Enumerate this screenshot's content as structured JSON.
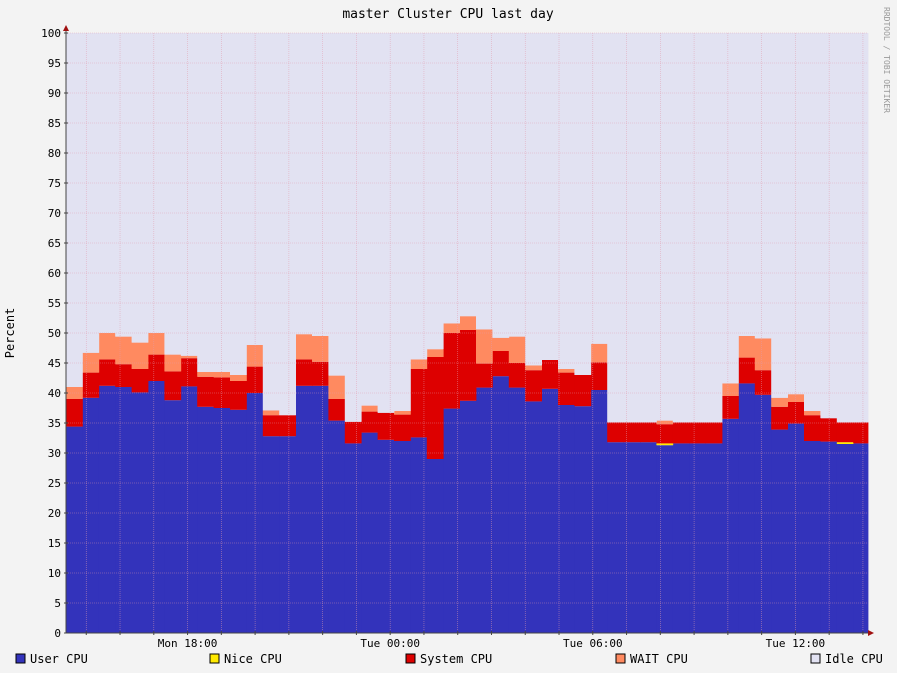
{
  "chart_data": {
    "type": "area",
    "stacked": true,
    "title": "master Cluster CPU last day",
    "ylabel": "Percent",
    "xlabel": "",
    "watermark": "RRDTOOL / TOBI OETIKER",
    "ylim": [
      0,
      100
    ],
    "yticks": [
      0,
      5,
      10,
      15,
      20,
      25,
      30,
      35,
      40,
      45,
      50,
      55,
      60,
      65,
      70,
      75,
      80,
      85,
      90,
      95,
      100
    ],
    "xlim_hours": [
      14.4,
      38.15
    ],
    "xtick_labels": [
      {
        "label": "Mon 18:00",
        "hour": 18
      },
      {
        "label": "Tue 00:00",
        "hour": 24
      },
      {
        "label": "Tue 06:00",
        "hour": 30
      },
      {
        "label": "Tue 12:00",
        "hour": 36
      }
    ],
    "grid": true,
    "legend_position": "bottom",
    "series_colors": {
      "user": "#3333bb",
      "nice": "#ffea00",
      "system": "#dd0000",
      "wait": "#ff8a60",
      "idle": "#e2e2f2"
    },
    "legend": [
      {
        "key": "user",
        "label": "User CPU"
      },
      {
        "key": "nice",
        "label": "Nice CPU"
      },
      {
        "key": "system",
        "label": "System CPU"
      },
      {
        "key": "wait",
        "label": "WAIT CPU"
      },
      {
        "key": "idle",
        "label": "Idle CPU"
      }
    ],
    "series": [
      {
        "name": "User CPU",
        "key": "user",
        "values": [
          34.4,
          39.2,
          41.2,
          41.0,
          40.1,
          42.0,
          38.8,
          41.1,
          37.7,
          37.5,
          37.2,
          40.0,
          32.8,
          32.8,
          41.2,
          41.2,
          35.4,
          31.6,
          33.4,
          32.2,
          32.0,
          32.6,
          29.0,
          37.4,
          38.7,
          40.9,
          42.8,
          40.9,
          38.6,
          40.7,
          38.0,
          37.8,
          40.5,
          31.8,
          31.8,
          31.8,
          31.3,
          31.6,
          31.6,
          31.6,
          35.7,
          41.6,
          39.7,
          33.9,
          34.9,
          32.0,
          31.9,
          31.5,
          31.6,
          31.6,
          31.7
        ]
      },
      {
        "name": "Nice CPU",
        "key": "nice",
        "values": [
          0,
          0,
          0,
          0,
          0,
          0,
          0,
          0,
          0,
          0,
          0,
          0,
          0,
          0,
          0,
          0,
          0,
          0,
          0,
          0,
          0,
          0,
          0,
          0,
          0,
          0,
          0,
          0,
          0,
          0,
          0,
          0,
          0,
          0,
          0,
          0,
          0.3,
          0,
          0,
          0,
          0,
          0,
          0,
          0,
          0,
          0,
          0,
          0.3,
          0,
          0,
          0
        ]
      },
      {
        "name": "System CPU",
        "key": "system",
        "values": [
          4.6,
          4.2,
          4.4,
          3.8,
          3.9,
          4.4,
          4.8,
          4.7,
          5.0,
          5.1,
          4.8,
          4.4,
          3.5,
          3.5,
          4.4,
          4.0,
          3.6,
          3.6,
          3.5,
          4.5,
          4.4,
          11.4,
          17.0,
          12.6,
          11.8,
          4.0,
          4.2,
          4.1,
          5.2,
          4.8,
          5.4,
          5.2,
          4.6,
          3.3,
          3.3,
          3.3,
          3.2,
          3.5,
          3.5,
          3.5,
          3.8,
          4.3,
          4.1,
          3.8,
          3.6,
          4.3,
          3.9,
          3.3,
          3.5,
          3.8,
          4.4
        ]
      },
      {
        "name": "WAIT CPU",
        "key": "wait",
        "values": [
          2.0,
          3.3,
          4.4,
          4.6,
          4.4,
          3.6,
          2.8,
          0.4,
          0.8,
          0.9,
          1.0,
          3.6,
          0.8,
          0,
          4.2,
          4.3,
          3.9,
          0,
          1.0,
          0,
          0.6,
          1.6,
          1.3,
          1.6,
          2.3,
          5.7,
          2.2,
          4.4,
          0.8,
          0,
          0.6,
          0,
          3.1,
          0,
          0,
          0,
          0.6,
          0,
          0,
          0,
          2.1,
          3.6,
          5.3,
          1.5,
          1.3,
          0.7,
          0,
          0,
          0,
          0,
          0.4
        ]
      },
      {
        "name": "Idle CPU",
        "key": "idle",
        "values": [
          59.0,
          53.3,
          50.0,
          50.6,
          51.6,
          50.0,
          53.6,
          53.8,
          56.5,
          56.5,
          57.0,
          52.0,
          62.9,
          63.7,
          50.2,
          50.5,
          57.1,
          64.8,
          62.1,
          63.3,
          63.0,
          54.4,
          52.7,
          48.4,
          47.2,
          49.4,
          50.8,
          50.6,
          55.4,
          54.5,
          56.0,
          57.0,
          51.8,
          64.9,
          64.9,
          64.9,
          64.6,
          64.9,
          64.9,
          64.9,
          58.4,
          50.5,
          50.9,
          60.8,
          60.2,
          63.0,
          64.2,
          64.9,
          64.9,
          64.6,
          63.5
        ]
      }
    ]
  }
}
